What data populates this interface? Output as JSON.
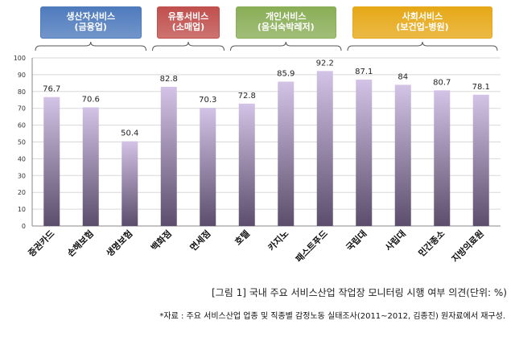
{
  "chart_data": {
    "type": "bar",
    "categories": [
      "증권카드",
      "손해보험",
      "생명보험",
      "백화점",
      "면세점",
      "호텔",
      "카지노",
      "패스트푸드",
      "국립대",
      "사립대",
      "민간종소",
      "지방의료원"
    ],
    "values": [
      76.7,
      70.6,
      50.4,
      82.8,
      70.3,
      72.8,
      85.9,
      92.2,
      87.1,
      84,
      80.7,
      78.1
    ],
    "value_labels": [
      "76.7",
      "70.6",
      "50.4",
      "82.8",
      "70.3",
      "72.8",
      "85.9",
      "92.2",
      "87.1",
      "84",
      "80.7",
      "78.1"
    ],
    "ylim": [
      0,
      100
    ],
    "yticks": [
      "0",
      "10",
      "20",
      "30",
      "40",
      "50",
      "60",
      "70",
      "80",
      "90",
      "100"
    ],
    "groups": [
      {
        "label": "생산자서비스\n(금융업)",
        "color": "#4f7bbd",
        "members": [
          0,
          1,
          2
        ]
      },
      {
        "label": "유통서비스\n(소매업)",
        "color": "#c0504d",
        "members": [
          3,
          4
        ]
      },
      {
        "label": "개인서비스\n(음식숙박레저)",
        "color": "#8aae57",
        "members": [
          5,
          6,
          7
        ]
      },
      {
        "label": "사회서비스\n(보건업-병원)",
        "color": "#e6a817",
        "members": [
          8,
          9,
          10,
          11
        ]
      }
    ],
    "colors": {
      "bar_top": "#d3c3e6",
      "bar_bottom": "#5b4d6b",
      "axis": "#888888",
      "grid": "#d8d8d8"
    },
    "xlabel": "",
    "ylabel": "",
    "grid": true
  },
  "caption": "[그림 1] 국내 주요 서비스산업 작업장 모니터링 시행 여부 의견(단위: %)",
  "note": "*자료 : 주요 서비스산업 업종 및 직종별 감정노동 실태조사(2011~2012, 김종진) 원자료에서 재구성."
}
